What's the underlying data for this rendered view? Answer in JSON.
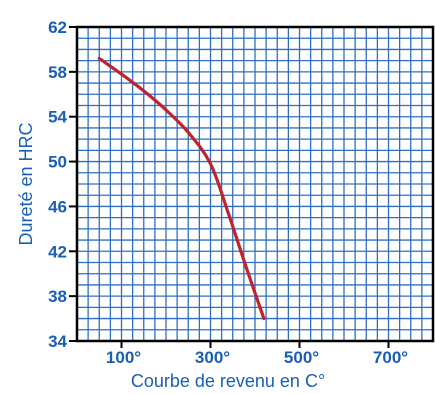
{
  "chart_data": {
    "type": "line",
    "title": "",
    "xlabel": "Courbe de revenu en C°",
    "ylabel": "Dureté en HRC",
    "xlim": [
      0,
      800
    ],
    "ylim": [
      34,
      62
    ],
    "x_ticks": [
      100,
      300,
      500,
      700
    ],
    "x_tick_labels": [
      "100°",
      "300°",
      "500°",
      "700°"
    ],
    "y_ticks": [
      34,
      38,
      42,
      46,
      50,
      54,
      58,
      62
    ],
    "y_tick_labels": [
      "34",
      "38",
      "42",
      "46",
      "50",
      "54",
      "58",
      "62"
    ],
    "grid": true,
    "series": [
      {
        "name": "",
        "x": [
          50,
          100,
          150,
          200,
          250,
          300,
          340,
          380,
          420
        ],
        "y": [
          59.2,
          57.8,
          56.3,
          54.6,
          52.6,
          49.8,
          45.4,
          40.6,
          36.0
        ]
      }
    ],
    "colors": {
      "axis": "#1a5fb4",
      "grid": "#2f6fc0",
      "line": "#c0232b",
      "text": "#1a5fb4",
      "frame": "#000000"
    }
  }
}
